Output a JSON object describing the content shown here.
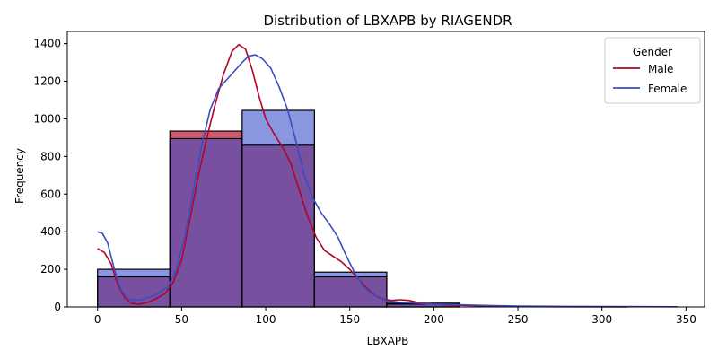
{
  "chart_data": {
    "type": "bar",
    "title": "Distribution of LBXAPB by RIAGENDR",
    "xlabel": "LBXAPB",
    "ylabel": "Frequency",
    "xlim": [
      -18,
      361
    ],
    "ylim": [
      0,
      1465
    ],
    "x_ticks": [
      0,
      50,
      100,
      150,
      200,
      250,
      300,
      350
    ],
    "y_ticks": [
      0,
      200,
      400,
      600,
      800,
      1000,
      1200,
      1400
    ],
    "grid": false,
    "legend": {
      "title": "Gender",
      "placement": "top-right"
    },
    "bin_edges": [
      0,
      43,
      86,
      129,
      172,
      215
    ],
    "series": [
      {
        "name": "Male",
        "color": "#b40426",
        "fill": "#cc5b6e",
        "histogram": [
          160,
          935,
          860,
          160,
          20
        ],
        "kde": [
          [
            0,
            310
          ],
          [
            4,
            290
          ],
          [
            8,
            230
          ],
          [
            12,
            120
          ],
          [
            16,
            50
          ],
          [
            20,
            20
          ],
          [
            25,
            15
          ],
          [
            30,
            25
          ],
          [
            35,
            45
          ],
          [
            40,
            70
          ],
          [
            45,
            130
          ],
          [
            50,
            250
          ],
          [
            55,
            470
          ],
          [
            60,
            700
          ],
          [
            65,
            900
          ],
          [
            70,
            1080
          ],
          [
            75,
            1240
          ],
          [
            80,
            1360
          ],
          [
            84,
            1395
          ],
          [
            88,
            1370
          ],
          [
            92,
            1260
          ],
          [
            96,
            1120
          ],
          [
            100,
            1000
          ],
          [
            105,
            920
          ],
          [
            110,
            850
          ],
          [
            115,
            760
          ],
          [
            120,
            620
          ],
          [
            125,
            480
          ],
          [
            130,
            370
          ],
          [
            135,
            300
          ],
          [
            140,
            270
          ],
          [
            145,
            240
          ],
          [
            150,
            200
          ],
          [
            155,
            150
          ],
          [
            160,
            100
          ],
          [
            165,
            60
          ],
          [
            170,
            40
          ],
          [
            175,
            35
          ],
          [
            180,
            38
          ],
          [
            185,
            35
          ],
          [
            190,
            25
          ],
          [
            200,
            15
          ],
          [
            210,
            10
          ],
          [
            230,
            5
          ],
          [
            250,
            2
          ],
          [
            280,
            1
          ],
          [
            315,
            0
          ]
        ]
      },
      {
        "name": "Female",
        "color": "#3b4cc0",
        "fill": "#8a96e0",
        "histogram": [
          200,
          895,
          1045,
          185,
          15
        ],
        "kde": [
          [
            0,
            400
          ],
          [
            3,
            390
          ],
          [
            6,
            340
          ],
          [
            10,
            200
          ],
          [
            14,
            90
          ],
          [
            18,
            45
          ],
          [
            22,
            35
          ],
          [
            27,
            40
          ],
          [
            32,
            55
          ],
          [
            37,
            75
          ],
          [
            42,
            110
          ],
          [
            47,
            200
          ],
          [
            52,
            380
          ],
          [
            57,
            620
          ],
          [
            62,
            860
          ],
          [
            67,
            1050
          ],
          [
            72,
            1160
          ],
          [
            77,
            1210
          ],
          [
            82,
            1260
          ],
          [
            86,
            1300
          ],
          [
            90,
            1335
          ],
          [
            94,
            1340
          ],
          [
            98,
            1320
          ],
          [
            103,
            1270
          ],
          [
            108,
            1170
          ],
          [
            113,
            1050
          ],
          [
            118,
            880
          ],
          [
            123,
            700
          ],
          [
            128,
            580
          ],
          [
            133,
            500
          ],
          [
            138,
            440
          ],
          [
            143,
            370
          ],
          [
            148,
            270
          ],
          [
            153,
            180
          ],
          [
            158,
            110
          ],
          [
            163,
            70
          ],
          [
            168,
            45
          ],
          [
            173,
            30
          ],
          [
            180,
            25
          ],
          [
            190,
            20
          ],
          [
            200,
            15
          ],
          [
            215,
            12
          ],
          [
            230,
            8
          ],
          [
            250,
            5
          ],
          [
            280,
            3
          ],
          [
            310,
            2
          ],
          [
            345,
            1
          ]
        ]
      }
    ],
    "overlap_fill": "#7750a0"
  }
}
